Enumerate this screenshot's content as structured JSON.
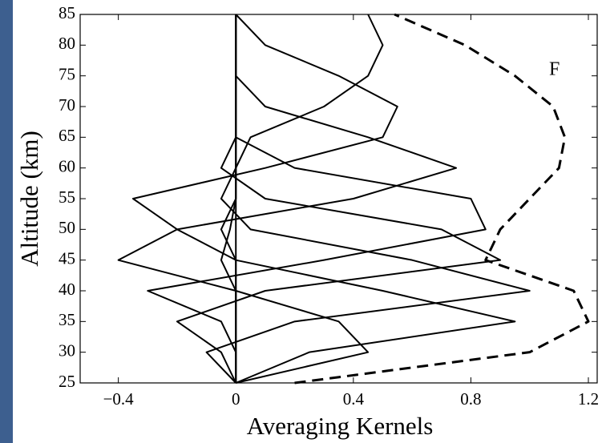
{
  "chart_data": {
    "type": "line",
    "xlabel": "Averaging Kernels",
    "ylabel": "Altitude (km)",
    "annotation": "F",
    "xlim": [
      -0.53,
      1.23
    ],
    "ylim": [
      25,
      85
    ],
    "xticks": [
      {
        "value": -0.4,
        "label": "−0.4"
      },
      0,
      0.4,
      0.8,
      1.2
    ],
    "yticks": [
      25,
      30,
      35,
      40,
      45,
      50,
      55,
      60,
      65,
      70,
      75,
      80,
      85
    ],
    "y": [
      25,
      30,
      35,
      40,
      45,
      50,
      55,
      60,
      65,
      70,
      75,
      80,
      85
    ],
    "series": [
      {
        "color": "#000000",
        "values": [
          0,
          0.45,
          0.35,
          0,
          -0.05,
          -0.02,
          0,
          0,
          0,
          0,
          0,
          0,
          0
        ]
      },
      {
        "color": "#000000",
        "values": [
          0,
          0.25,
          0.95,
          0.5,
          0,
          -0.05,
          0,
          0,
          0,
          0,
          0,
          0,
          0
        ]
      },
      {
        "color": "#000000",
        "values": [
          0,
          -0.1,
          0.2,
          1.0,
          0.6,
          0.05,
          -0.05,
          0,
          0,
          0,
          0,
          0,
          0
        ]
      },
      {
        "color": "#000000",
        "values": [
          0,
          -0.05,
          -0.2,
          0.1,
          0.9,
          0.7,
          0.1,
          -0.05,
          0,
          0,
          0,
          0,
          0
        ]
      },
      {
        "color": "#000000",
        "values": [
          0,
          0,
          -0.05,
          -0.3,
          0.3,
          0.85,
          0.8,
          0.2,
          0,
          0,
          0,
          0,
          0
        ]
      },
      {
        "color": "#000000",
        "values": [
          0,
          0,
          0,
          0,
          -0.4,
          -0.2,
          0.4,
          0.75,
          0.45,
          0.1,
          0,
          0,
          0
        ]
      },
      {
        "color": "#000000",
        "values": [
          0,
          0,
          0,
          0,
          0,
          -0.2,
          -0.35,
          0.1,
          0.5,
          0.55,
          0.35,
          0.1,
          0
        ]
      },
      {
        "color": "#000000",
        "values": [
          0,
          0,
          0,
          0,
          0,
          0,
          0,
          0,
          0.05,
          0.3,
          0.45,
          0.5,
          0.45
        ]
      },
      {
        "color": "#000000",
        "dashed": true,
        "values": [
          0.2,
          1.0,
          1.2,
          1.15,
          0.85,
          0.9,
          1.0,
          1.1,
          1.12,
          1.08,
          0.95,
          0.78,
          0.54
        ]
      }
    ]
  }
}
